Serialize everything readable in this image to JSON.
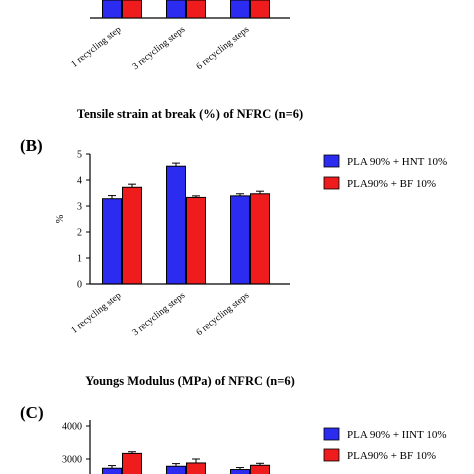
{
  "colors": {
    "series_1": "#2c2cf0",
    "series_2": "#ee1c1c",
    "axis": "#000000"
  },
  "chart_data": [
    {
      "type": "bar",
      "panel_label": "",
      "title": "",
      "categories": [
        "1 recycling step",
        "3 recycling steps",
        "6 recycling steps"
      ],
      "series": [
        {
          "values": [
            null,
            null,
            null
          ]
        },
        {
          "values": [
            null,
            null,
            null
          ]
        }
      ],
      "xlabel": "",
      "ylabel": "",
      "note": "partially visible panel (cropped at top)"
    },
    {
      "type": "bar",
      "panel_label": "(B)",
      "title": "Tensile strain at break (%) of NFRC (n=6)",
      "categories": [
        "1 recycling step",
        "3 recycling steps",
        "6 recycling steps"
      ],
      "series": [
        {
          "name": "PLA 90% + HNT 10%",
          "values": [
            3.28,
            4.53,
            3.39
          ],
          "errors": [
            0.12,
            0.12,
            0.08
          ]
        },
        {
          "name": "PLA90% + BF 10%",
          "values": [
            3.72,
            3.33,
            3.47
          ],
          "errors": [
            0.12,
            0.06,
            0.1
          ]
        }
      ],
      "xlabel": "",
      "ylabel": "%",
      "ylim": [
        0,
        5
      ],
      "yticks": [
        "0",
        "1",
        "2",
        "3",
        "4",
        "5"
      ],
      "legend": "right"
    },
    {
      "type": "bar",
      "panel_label": "(C)",
      "title": "Youngs Modulus (MPa) of NFRC (n=6)",
      "categories": [
        "1 recycling step",
        "3 recycling steps",
        "6 recycling steps"
      ],
      "series": [
        {
          "name": "PLA 90% + IINT 10%",
          "values": [
            2720,
            2780,
            2680
          ],
          "errors": [
            80,
            80,
            60
          ]
        },
        {
          "name": "PLA90% + BF 10%",
          "values": [
            3170,
            2880,
            2810
          ],
          "errors": [
            50,
            120,
            60
          ]
        }
      ],
      "xlabel": "",
      "ylabel": "",
      "ylim": [
        2000,
        4000
      ],
      "yticks": [
        "4000",
        "3000"
      ],
      "legend": "right"
    }
  ]
}
